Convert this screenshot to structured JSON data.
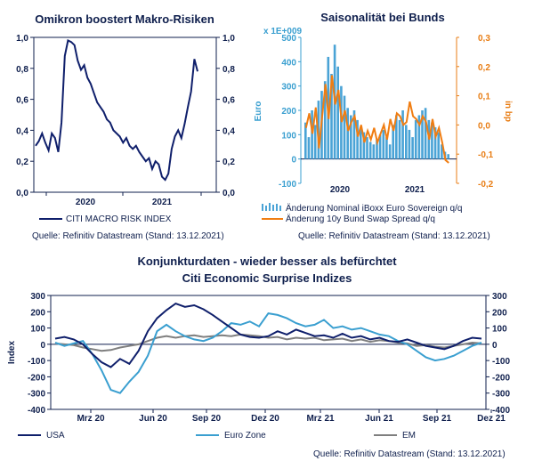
{
  "chart_data": [
    {
      "type": "line",
      "title": "Omikron boostert Makro-Risiken",
      "x_ticks": [
        "2020",
        "2021"
      ],
      "ylim": [
        0,
        1
      ],
      "y_ticks": [
        "0,0",
        "0,2",
        "0,4",
        "0,6",
        "0,8",
        "1,0"
      ],
      "series": [
        {
          "name": "CITI MACRO RISK INDEX",
          "color": "#0f1f6b",
          "x": [
            0,
            0.02,
            0.04,
            0.06,
            0.08,
            0.1,
            0.12,
            0.14,
            0.16,
            0.18,
            0.2,
            0.22,
            0.24,
            0.26,
            0.28,
            0.3,
            0.32,
            0.34,
            0.36,
            0.38,
            0.4,
            0.42,
            0.44,
            0.46,
            0.48,
            0.5,
            0.52,
            0.54,
            0.56,
            0.58,
            0.6,
            0.62,
            0.64,
            0.66,
            0.68,
            0.7,
            0.72,
            0.74,
            0.76,
            0.78,
            0.8,
            0.82,
            0.84,
            0.86,
            0.88,
            0.9,
            0.92,
            0.94,
            0.96,
            0.98,
            1.0
          ],
          "values": [
            0.3,
            0.33,
            0.38,
            0.32,
            0.27,
            0.38,
            0.35,
            0.26,
            0.45,
            0.88,
            0.98,
            0.97,
            0.95,
            0.85,
            0.79,
            0.82,
            0.74,
            0.7,
            0.64,
            0.58,
            0.55,
            0.52,
            0.47,
            0.45,
            0.4,
            0.38,
            0.36,
            0.32,
            0.35,
            0.3,
            0.28,
            0.3,
            0.26,
            0.23,
            0.2,
            0.22,
            0.15,
            0.2,
            0.18,
            0.1,
            0.08,
            0.12,
            0.28,
            0.36,
            0.4,
            0.35,
            0.44,
            0.55,
            0.65,
            0.86,
            0.78
          ]
        }
      ],
      "legend_position": "bottom-left",
      "source": "Quelle: Refinitiv Datastream (Stand: 13.12.2021)"
    },
    {
      "type": "bar+line",
      "title": "Saisonalität bei Bunds",
      "left_axis_label": "Euro",
      "left_axis_multiplier": "x 1E+009",
      "right_axis_label": "in bp",
      "x_ticks": [
        "2020",
        "2021"
      ],
      "ylim_left": [
        -100,
        500
      ],
      "y_ticks_left": [
        "-100",
        "0",
        "100",
        "200",
        "300",
        "400",
        "500"
      ],
      "ylim_right": [
        -0.2,
        0.3
      ],
      "y_ticks_right": [
        "-0,2",
        "-0,1",
        "0,0",
        "0,1",
        "0,2",
        "0,3"
      ],
      "series": [
        {
          "name": "Änderung Nominal iBoxx Euro Sovereign q/q",
          "color": "#4aa3d6",
          "kind": "bar",
          "values": [
            150,
            90,
            200,
            140,
            240,
            280,
            320,
            420,
            350,
            470,
            380,
            300,
            260,
            210,
            180,
            200,
            160,
            130,
            110,
            90,
            70,
            60,
            80,
            100,
            120,
            90,
            60,
            140,
            180,
            160,
            200,
            140,
            120,
            90,
            160,
            180,
            200,
            210,
            160,
            150,
            130,
            110,
            60,
            30,
            20
          ]
        },
        {
          "name": "Änderung 10y Bund Swap Spread q/q",
          "color": "#f07d12",
          "kind": "line",
          "values": [
            -0.01,
            0.04,
            -0.03,
            0.06,
            -0.08,
            0.03,
            0.14,
            0.02,
            0.17,
            0.07,
            0.12,
            0.01,
            0.05,
            -0.02,
            0.01,
            0.03,
            -0.04,
            0.0,
            -0.06,
            -0.02,
            -0.05,
            -0.01,
            -0.06,
            -0.03,
            0.0,
            -0.05,
            0.02,
            -0.02,
            0.04,
            0.03,
            0.0,
            0.01,
            0.08,
            0.03,
            0.02,
            0.0,
            0.03,
            0.01,
            -0.05,
            0.02,
            -0.04,
            -0.01,
            -0.06,
            -0.12,
            -0.13
          ]
        }
      ],
      "legend_position": "bottom-left",
      "source": "Quelle: Refinitiv Datastream (Stand: 13.12.2021)"
    },
    {
      "type": "line",
      "title": "Konjunkturdaten - wieder besser als befürchtet",
      "subtitle": "Citi Economic Surprise Indizes",
      "ylabel": "Index",
      "x_ticks": [
        "Mrz 20",
        "Jun 20",
        "Sep 20",
        "Dez 20",
        "Mrz 21",
        "Jun 21",
        "Sep 21",
        "Dez 21"
      ],
      "ylim": [
        -400,
        300
      ],
      "y_ticks": [
        "-400",
        "-300",
        "-200",
        "-100",
        "0",
        "100",
        "200",
        "300"
      ],
      "series": [
        {
          "name": "USA",
          "color": "#0f1f6b",
          "values": [
            35,
            45,
            30,
            0,
            -60,
            -110,
            -140,
            -90,
            -120,
            -40,
            80,
            160,
            210,
            250,
            230,
            240,
            215,
            180,
            140,
            100,
            60,
            45,
            40,
            50,
            80,
            60,
            90,
            70,
            50,
            55,
            40,
            65,
            40,
            50,
            30,
            40,
            20,
            15,
            30,
            10,
            -10,
            -20,
            -30,
            -10,
            20,
            40,
            35
          ]
        },
        {
          "name": "Euro Zone",
          "color": "#3a9fd0",
          "values": [
            10,
            -10,
            5,
            20,
            -60,
            -160,
            -280,
            -300,
            -230,
            -170,
            -70,
            80,
            120,
            80,
            50,
            30,
            20,
            40,
            80,
            130,
            120,
            140,
            110,
            190,
            180,
            160,
            130,
            110,
            120,
            150,
            100,
            110,
            90,
            100,
            80,
            60,
            50,
            20,
            0,
            -40,
            -80,
            -100,
            -90,
            -70,
            -40,
            -10,
            10
          ]
        },
        {
          "name": "EM",
          "color": "#7f7f7f",
          "values": [
            5,
            0,
            -5,
            -20,
            -30,
            -40,
            -35,
            -20,
            -10,
            0,
            20,
            40,
            50,
            40,
            50,
            55,
            45,
            50,
            55,
            50,
            60,
            55,
            50,
            40,
            45,
            30,
            40,
            35,
            40,
            25,
            30,
            35,
            20,
            30,
            15,
            25,
            20,
            10,
            5,
            -10,
            -5,
            -15,
            -20,
            -10,
            0,
            10,
            5
          ]
        }
      ],
      "legend_position": "bottom",
      "source": "Quelle: Refinitiv Datastream (Stand: 13.12.2021)"
    }
  ]
}
